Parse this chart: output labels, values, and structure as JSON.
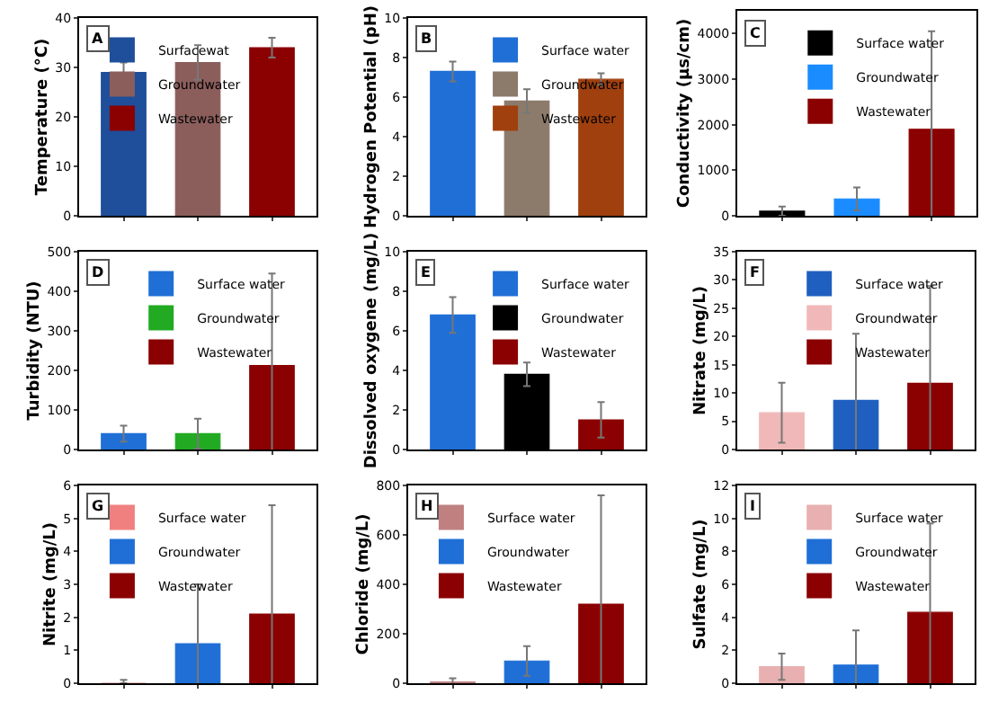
{
  "chart_data": [
    {
      "type": "bar",
      "ylabel": "Temperature (°C)",
      "annotations": [
        "A"
      ],
      "categories": [
        null,
        null,
        null
      ],
      "ylim": [
        0,
        40
      ],
      "yticks": [
        0,
        10,
        20,
        30,
        40
      ],
      "legend": "top left",
      "tick_labels": "y",
      "series": [
        {
          "name": "Surfacewat",
          "color": "#1f4e9a",
          "values": [
            29,
            null,
            null
          ],
          "errors": [
            2,
            null,
            null
          ]
        },
        {
          "name": "Groundwater",
          "color": "#8b5e5c",
          "values": [
            null,
            31,
            null
          ],
          "errors": [
            null,
            3.5,
            null
          ]
        },
        {
          "name": "Wastewater",
          "color": "#8b0000",
          "values": [
            null,
            null,
            34
          ],
          "errors": [
            null,
            null,
            2
          ]
        }
      ]
    },
    {
      "type": "bar",
      "ylabel": "Hydrogen Potential (pH)",
      "annotations": [
        "B"
      ],
      "categories": [
        null,
        null,
        null
      ],
      "ylim": [
        0,
        10
      ],
      "yticks": [
        0,
        2,
        4,
        6,
        8,
        10
      ],
      "legend": "top right",
      "tick_labels": "y",
      "series": [
        {
          "name": "Surface water",
          "color": "#1f6fd6",
          "values": [
            7.3,
            null,
            null
          ],
          "errors": [
            0.5,
            null,
            null
          ]
        },
        {
          "name": "Groundwater",
          "color": "#8c7b6b",
          "values": [
            null,
            5.8,
            null
          ],
          "errors": [
            null,
            0.6,
            null
          ]
        },
        {
          "name": "Wastewater",
          "color": "#a0400f",
          "values": [
            null,
            null,
            6.9
          ],
          "errors": [
            null,
            null,
            0.3
          ]
        }
      ]
    },
    {
      "type": "bar",
      "ylabel": "Conductivity (µs/cm)",
      "annotations": [
        "C"
      ],
      "categories": [
        null,
        null,
        null
      ],
      "ylim": [
        0,
        4500
      ],
      "yticks": [
        0,
        1000,
        2000,
        3000,
        4000
      ],
      "legend": "top",
      "tick_labels": "y",
      "series": [
        {
          "name": "Surface water",
          "color": "#000000",
          "values": [
            100,
            null,
            null
          ],
          "errors": [
            100,
            null,
            null
          ]
        },
        {
          "name": "Groundwater",
          "color": "#1a8cff",
          "values": [
            null,
            370,
            null
          ],
          "errors": [
            null,
            250,
            null
          ]
        },
        {
          "name": "Wastewater",
          "color": "#8b0000",
          "values": [
            null,
            null,
            1900
          ],
          "errors": [
            null,
            null,
            2150
          ]
        }
      ]
    },
    {
      "type": "bar",
      "ylabel": "Turbidity (NTU)",
      "annotations": [
        "D"
      ],
      "categories": [
        null,
        null,
        null
      ],
      "ylim": [
        0,
        500
      ],
      "yticks": [
        0,
        100,
        200,
        300,
        400,
        500
      ],
      "legend": "top",
      "tick_labels": "y",
      "series": [
        {
          "name": "Surface water",
          "color": "#1f6fd6",
          "values": [
            40,
            null,
            null
          ],
          "errors": [
            20,
            null,
            null
          ]
        },
        {
          "name": "Groundwater",
          "color": "#22aa22",
          "values": [
            null,
            40,
            null
          ],
          "errors": [
            null,
            38,
            null
          ]
        },
        {
          "name": "Wastewater",
          "color": "#8b0000",
          "values": [
            null,
            null,
            212
          ],
          "errors": [
            null,
            null,
            233
          ]
        }
      ]
    },
    {
      "type": "bar",
      "ylabel": "Dissolved oxygene (mg/L)",
      "annotations": [
        "E"
      ],
      "categories": [
        null,
        null,
        null
      ],
      "ylim": [
        0,
        10
      ],
      "yticks": [
        0,
        2,
        4,
        6,
        8,
        10
      ],
      "legend": "top right",
      "tick_labels": "y",
      "series": [
        {
          "name": "Surface water",
          "color": "#1f6fd6",
          "values": [
            6.8,
            null,
            null
          ],
          "errors": [
            0.9,
            null,
            null
          ]
        },
        {
          "name": "Groundwater",
          "color": "#000000",
          "values": [
            null,
            3.8,
            null
          ],
          "errors": [
            null,
            0.6,
            null
          ]
        },
        {
          "name": "Wastewater",
          "color": "#8b0000",
          "values": [
            null,
            null,
            1.5
          ],
          "errors": [
            null,
            null,
            0.9
          ]
        }
      ]
    },
    {
      "type": "bar",
      "ylabel": "Nitrate (mg/L)",
      "annotations": [
        "F"
      ],
      "categories": [
        null,
        null,
        null
      ],
      "ylim": [
        0,
        35
      ],
      "yticks": [
        0,
        5,
        10,
        15,
        20,
        25,
        30,
        35
      ],
      "legend": "top",
      "tick_labels": "y",
      "series": [
        {
          "name": "Surface water",
          "color": "#1f5fc0",
          "values": [
            null,
            8.7,
            null
          ],
          "errors": [
            null,
            11.8,
            null
          ]
        },
        {
          "name": "Groundwater",
          "color": "#f0b8b8",
          "values": [
            6.5,
            null,
            null
          ],
          "errors": [
            5.3,
            null,
            null
          ]
        },
        {
          "name": "Wastewater",
          "color": "#8b0000",
          "values": [
            null,
            null,
            11.7
          ],
          "errors": [
            null,
            null,
            17.2
          ]
        }
      ]
    },
    {
      "type": "bar",
      "ylabel": "Nitrite (mg/L)",
      "annotations": [
        "G"
      ],
      "categories": [
        null,
        null,
        null
      ],
      "ylim": [
        0,
        6
      ],
      "yticks": [
        0,
        1,
        2,
        3,
        4,
        5,
        6
      ],
      "legend": "top left",
      "tick_labels": "y",
      "series": [
        {
          "name": "Surface water",
          "color": "#f08080",
          "values": [
            0,
            null,
            null
          ],
          "errors": [
            [
              0,
              0.1
            ],
            null,
            null
          ]
        },
        {
          "name": "Groundwater",
          "color": "#1f6fd6",
          "values": [
            null,
            1.2,
            null
          ],
          "errors": [
            null,
            1.8,
            null
          ]
        },
        {
          "name": "Wastewater",
          "color": "#8b0000",
          "values": [
            null,
            null,
            2.1
          ],
          "errors": [
            null,
            null,
            3.3
          ]
        }
      ]
    },
    {
      "type": "bar",
      "ylabel": "Chloride (mg/L)",
      "annotations": [
        "H"
      ],
      "categories": [
        null,
        null,
        null
      ],
      "ylim": [
        0,
        800
      ],
      "yticks": [
        0,
        200,
        400,
        600,
        800
      ],
      "legend": "top left",
      "tick_labels": "y",
      "series": [
        {
          "name": "Surface water",
          "color": "#c08080",
          "values": [
            5,
            null,
            null
          ],
          "errors": [
            15,
            null,
            null
          ]
        },
        {
          "name": "Groundwater",
          "color": "#1f6fd6",
          "values": [
            null,
            90,
            null
          ],
          "errors": [
            null,
            60,
            null
          ]
        },
        {
          "name": "Wastewater",
          "color": "#8b0000",
          "values": [
            null,
            null,
            320
          ],
          "errors": [
            null,
            null,
            440
          ]
        }
      ]
    },
    {
      "type": "bar",
      "ylabel": "Sulfate (mg/L)",
      "annotations": [
        "I"
      ],
      "categories": [
        null,
        null,
        null
      ],
      "ylim": [
        0,
        12
      ],
      "yticks": [
        0,
        2,
        4,
        6,
        8,
        10,
        12
      ],
      "legend": "top",
      "tick_labels": "y",
      "series": [
        {
          "name": "Surface water",
          "color": "#e8b0b0",
          "values": [
            1.0,
            null,
            null
          ],
          "errors": [
            0.8,
            null,
            null
          ]
        },
        {
          "name": "Groundwater",
          "color": "#1f6fd6",
          "values": [
            null,
            1.1,
            null
          ],
          "errors": [
            null,
            2.1,
            null
          ]
        },
        {
          "name": "Wastewater",
          "color": "#8b0000",
          "values": [
            null,
            null,
            4.3
          ],
          "errors": [
            null,
            null,
            5.4
          ]
        }
      ]
    }
  ]
}
